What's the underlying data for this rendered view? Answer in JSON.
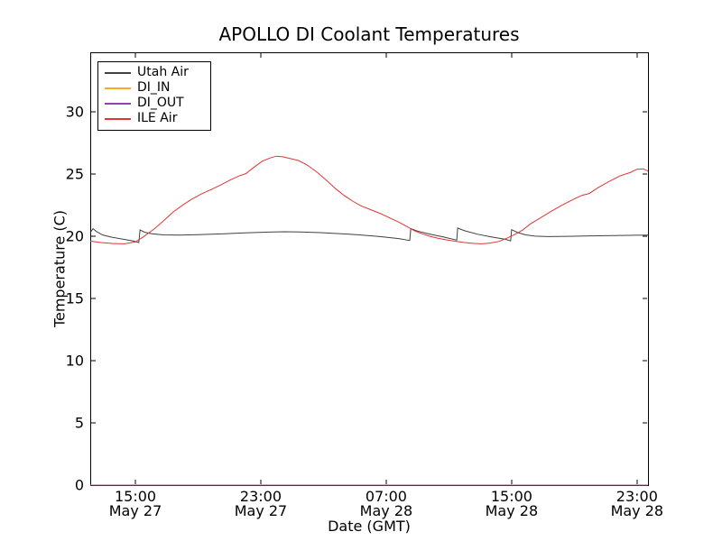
{
  "window": {
    "title": "APOLLO DI Coolant Temperatures"
  },
  "chart_data": {
    "type": "line",
    "title": "APOLLO DI Coolant Temperatures",
    "xlabel": "Date (GMT)",
    "ylabel": "Temperature (C)",
    "ylim": [
      0,
      34.8
    ],
    "xlim": [
      0.12,
      35.7
    ],
    "x_unit_note": "hours after 12:00 May 27 GMT",
    "grid": false,
    "yticks": [
      0,
      5,
      10,
      15,
      20,
      25,
      30
    ],
    "xticks": [
      {
        "h": 3,
        "time": "15:00",
        "date": "May 27"
      },
      {
        "h": 11,
        "time": "23:00",
        "date": "May 27"
      },
      {
        "h": 19,
        "time": "07:00",
        "date": "May 28"
      },
      {
        "h": 27,
        "time": "15:00",
        "date": "May 28"
      },
      {
        "h": 35,
        "time": "23:00",
        "date": "May 28"
      }
    ],
    "legend": {
      "position": "upper left",
      "entries": [
        "Utah Air",
        "DI_IN",
        "DI_OUT",
        "ILE Air"
      ]
    },
    "series": [
      {
        "name": "Utah Air",
        "color": "#404040",
        "points": [
          [
            0.12,
            20.3
          ],
          [
            0.3,
            20.62
          ],
          [
            0.5,
            20.4
          ],
          [
            0.9,
            20.12
          ],
          [
            1.5,
            19.93
          ],
          [
            2.2,
            19.78
          ],
          [
            2.9,
            19.62
          ],
          [
            3.22,
            19.5
          ],
          [
            3.3,
            20.52
          ],
          [
            3.6,
            20.33
          ],
          [
            4.1,
            20.2
          ],
          [
            4.8,
            20.12
          ],
          [
            5.8,
            20.1
          ],
          [
            7.0,
            20.13
          ],
          [
            8.5,
            20.2
          ],
          [
            10.0,
            20.28
          ],
          [
            11.5,
            20.34
          ],
          [
            12.5,
            20.37
          ],
          [
            13.5,
            20.36
          ],
          [
            14.8,
            20.3
          ],
          [
            16.0,
            20.22
          ],
          [
            17.3,
            20.12
          ],
          [
            18.6,
            19.98
          ],
          [
            19.8,
            19.82
          ],
          [
            20.5,
            19.67
          ],
          [
            20.57,
            20.62
          ],
          [
            21.0,
            20.42
          ],
          [
            21.8,
            20.18
          ],
          [
            22.7,
            19.94
          ],
          [
            23.5,
            19.7
          ],
          [
            23.56,
            20.66
          ],
          [
            24.0,
            20.45
          ],
          [
            24.8,
            20.18
          ],
          [
            25.7,
            19.96
          ],
          [
            26.6,
            19.76
          ],
          [
            26.94,
            19.64
          ],
          [
            27.0,
            20.54
          ],
          [
            27.4,
            20.3
          ],
          [
            27.9,
            20.12
          ],
          [
            28.5,
            20.02
          ],
          [
            29.3,
            19.98
          ],
          [
            30.5,
            20.0
          ],
          [
            32.0,
            20.04
          ],
          [
            33.5,
            20.07
          ],
          [
            35.0,
            20.09
          ],
          [
            35.7,
            20.1
          ]
        ]
      },
      {
        "name": "DI_IN",
        "color": "#ffa726",
        "points": [
          [
            0.12,
            0
          ],
          [
            35.7,
            0
          ]
        ]
      },
      {
        "name": "DI_OUT",
        "color": "#8e44ad",
        "opacity": 0.8,
        "points": [
          [
            0.12,
            0
          ],
          [
            35.7,
            0
          ]
        ]
      },
      {
        "name": "ILE Air",
        "color": "#e03535",
        "points": [
          [
            0.12,
            19.62
          ],
          [
            0.8,
            19.5
          ],
          [
            1.6,
            19.42
          ],
          [
            2.3,
            19.4
          ],
          [
            3.0,
            19.55
          ],
          [
            3.5,
            19.95
          ],
          [
            4.2,
            20.6
          ],
          [
            4.8,
            21.25
          ],
          [
            5.4,
            21.95
          ],
          [
            6.0,
            22.5
          ],
          [
            6.6,
            23.0
          ],
          [
            7.2,
            23.4
          ],
          [
            7.8,
            23.75
          ],
          [
            8.4,
            24.1
          ],
          [
            9.0,
            24.5
          ],
          [
            9.6,
            24.85
          ],
          [
            10.05,
            25.05
          ],
          [
            10.5,
            25.5
          ],
          [
            11.1,
            26.05
          ],
          [
            11.6,
            26.3
          ],
          [
            12.0,
            26.45
          ],
          [
            12.4,
            26.4
          ],
          [
            12.8,
            26.28
          ],
          [
            13.4,
            26.1
          ],
          [
            14.0,
            25.7
          ],
          [
            14.6,
            25.15
          ],
          [
            15.2,
            24.5
          ],
          [
            15.8,
            23.8
          ],
          [
            16.3,
            23.3
          ],
          [
            16.9,
            22.8
          ],
          [
            17.4,
            22.45
          ],
          [
            18.0,
            22.15
          ],
          [
            18.6,
            21.85
          ],
          [
            19.2,
            21.5
          ],
          [
            19.8,
            21.15
          ],
          [
            20.3,
            20.8
          ],
          [
            20.8,
            20.45
          ],
          [
            21.2,
            20.25
          ],
          [
            21.8,
            20.0
          ],
          [
            22.3,
            19.85
          ],
          [
            22.9,
            19.7
          ],
          [
            23.5,
            19.6
          ],
          [
            24.0,
            19.5
          ],
          [
            24.6,
            19.43
          ],
          [
            25.1,
            19.4
          ],
          [
            25.6,
            19.46
          ],
          [
            26.2,
            19.6
          ],
          [
            26.7,
            19.85
          ],
          [
            27.2,
            20.15
          ],
          [
            27.7,
            20.5
          ],
          [
            28.2,
            21.0
          ],
          [
            28.8,
            21.45
          ],
          [
            29.5,
            22.0
          ],
          [
            30.2,
            22.5
          ],
          [
            30.9,
            22.95
          ],
          [
            31.5,
            23.3
          ],
          [
            31.95,
            23.45
          ],
          [
            32.5,
            23.9
          ],
          [
            33.2,
            24.4
          ],
          [
            33.9,
            24.85
          ],
          [
            34.6,
            25.15
          ],
          [
            35.0,
            25.4
          ],
          [
            35.4,
            25.43
          ],
          [
            35.7,
            25.25
          ]
        ]
      }
    ]
  }
}
